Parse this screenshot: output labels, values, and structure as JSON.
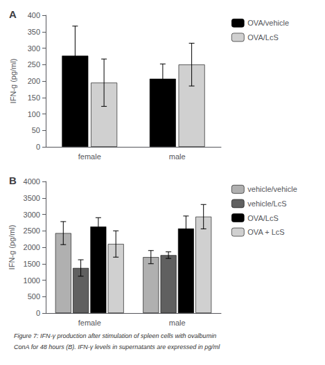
{
  "chart_data": [
    {
      "type": "bar",
      "title": "A",
      "ylabel": "IFN-g (pg/ml)",
      "categories": [
        "female",
        "male"
      ],
      "series": [
        {
          "name": "OVA/vehicle",
          "color": "#000000",
          "values": [
            277,
            207
          ],
          "errors": [
            90,
            45
          ]
        },
        {
          "name": "OVA/LcS",
          "color": "#d0d0d0",
          "values": [
            195,
            250
          ],
          "errors": [
            72,
            65
          ]
        }
      ],
      "ylim": [
        0,
        400
      ],
      "yticks": [
        0,
        50,
        100,
        150,
        200,
        250,
        300,
        350,
        400
      ],
      "grid": false,
      "legend": "right"
    },
    {
      "type": "bar",
      "title": "B",
      "ylabel": "IFN-g (pg/ml)",
      "categories": [
        "female",
        "male"
      ],
      "series": [
        {
          "name": "vehicle/vehicle",
          "color": "#b0b0b0",
          "values": [
            2430,
            1700
          ],
          "errors": [
            350,
            200
          ]
        },
        {
          "name": "vehicle/LcS",
          "color": "#606060",
          "values": [
            1370,
            1760
          ],
          "errors": [
            250,
            100
          ]
        },
        {
          "name": "OVA/LcS",
          "color": "#000000",
          "values": [
            2630,
            2570
          ],
          "errors": [
            270,
            380
          ]
        },
        {
          "name": "OVA + LcS",
          "color": "#d0d0d0",
          "values": [
            2100,
            2930
          ],
          "errors": [
            400,
            370
          ]
        }
      ],
      "ylim": [
        0,
        4000
      ],
      "yticks": [
        0,
        500,
        1000,
        1500,
        2000,
        2500,
        3000,
        3500,
        4000
      ],
      "grid": false,
      "legend": "right",
      "annotations": [
        "Figure 7: IFN-γ production after stimulation of spleen cells with ovalbumin",
        "ConA for 48 hours (B). IFN-γ levels in supernatants are expressed in pg/ml"
      ]
    }
  ]
}
